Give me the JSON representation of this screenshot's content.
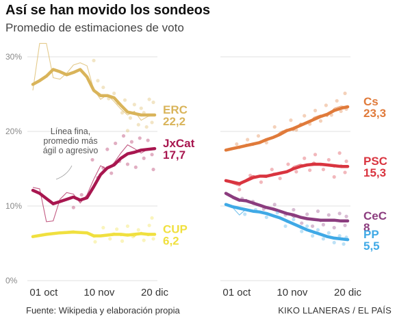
{
  "title": "Así se han movido los sondeos",
  "subtitle": "Promedio de estimaciones de voto",
  "source": "Fuente: Wikipedia y elaboración propia",
  "credit": "KIKO LLANERAS / EL PAÍS",
  "chart_data": [
    {
      "type": "line",
      "panel": "left",
      "yticks": [
        "30%",
        "20%",
        "10%",
        "0%"
      ],
      "xticks": [
        "01 oct",
        "10 nov",
        "20 dic"
      ],
      "ylim": [
        0,
        32
      ],
      "grid": true,
      "annotation": [
        "Línea fina,",
        "promedio más",
        "ágil o agresivo"
      ],
      "series": [
        {
          "name": "ERC",
          "label": "22,2",
          "color": "#d9b45a",
          "x": [
            0,
            5,
            10,
            15,
            20,
            25,
            30,
            35,
            40,
            45,
            50,
            55,
            60,
            65,
            70,
            75,
            80,
            85,
            90
          ],
          "values": [
            26.3,
            26.8,
            27.4,
            28.3,
            28.0,
            27.6,
            27.9,
            28.3,
            27.3,
            25.5,
            24.8,
            24.8,
            24.5,
            23.5,
            22.6,
            22.4,
            22.2,
            22.2,
            22.2
          ],
          "fast": [
            25.5,
            31.8,
            31.8,
            27.2,
            27.0,
            27.8,
            28.9,
            29.2,
            28.8,
            25.6,
            24.3,
            24.9,
            24.0,
            23.0,
            22.2,
            22.7,
            21.5,
            22.0,
            22.2
          ],
          "polls": [
            [
              45,
              29.5
            ],
            [
              48,
              26.8
            ],
            [
              52,
              25.9
            ],
            [
              56,
              24.4
            ],
            [
              60,
              25.1
            ],
            [
              63,
              23.8
            ],
            [
              66,
              22.5
            ],
            [
              68,
              24.2
            ],
            [
              72,
              21.8
            ],
            [
              75,
              23.6
            ],
            [
              78,
              20.9
            ],
            [
              82,
              22.5
            ],
            [
              84,
              20.6
            ],
            [
              86,
              24.3
            ],
            [
              88,
              21.2
            ],
            [
              89,
              23.9
            ],
            [
              70,
              20.1
            ],
            [
              80,
              23.1
            ]
          ]
        },
        {
          "name": "JxCat",
          "label": "17,7",
          "color": "#a8164f",
          "x": [
            0,
            5,
            10,
            15,
            20,
            25,
            30,
            35,
            40,
            45,
            50,
            55,
            60,
            65,
            70,
            75,
            80,
            85,
            90
          ],
          "values": [
            12.1,
            11.7,
            11.0,
            10.3,
            10.6,
            10.9,
            11.2,
            10.8,
            11.1,
            12.6,
            14.2,
            15.1,
            15.5,
            16.4,
            17.0,
            17.2,
            17.5,
            17.6,
            17.7
          ],
          "fast": [
            12.5,
            12.3,
            7.9,
            8.0,
            10.9,
            11.8,
            11.6,
            10.4,
            11.5,
            13.6,
            15.4,
            14.9,
            15.8,
            17.1,
            18.2,
            17.7,
            17.1,
            17.6,
            17.7
          ],
          "polls": [
            [
              44,
              16.2
            ],
            [
              48,
              13.8
            ],
            [
              52,
              15.1
            ],
            [
              55,
              17.6
            ],
            [
              58,
              14.4
            ],
            [
              61,
              18.4
            ],
            [
              64,
              16.0
            ],
            [
              67,
              19.4
            ],
            [
              70,
              15.6
            ],
            [
              73,
              18.6
            ],
            [
              76,
              15.2
            ],
            [
              79,
              19.1
            ],
            [
              82,
              16.4
            ],
            [
              85,
              18.8
            ],
            [
              88,
              16.9
            ],
            [
              89,
              14.9
            ],
            [
              30,
              9.8
            ],
            [
              36,
              11.5
            ]
          ]
        },
        {
          "name": "CUP",
          "label": "6,2",
          "color": "#f0e03f",
          "x": [
            0,
            10,
            20,
            30,
            40,
            45,
            50,
            55,
            60,
            65,
            70,
            75,
            80,
            85,
            90
          ],
          "values": [
            5.9,
            6.2,
            6.4,
            6.5,
            6.4,
            6.0,
            6.0,
            6.1,
            6.2,
            6.2,
            6.1,
            6.2,
            6.3,
            6.2,
            6.2
          ],
          "fast": [
            5.8,
            6.1,
            6.5,
            6.7,
            6.3,
            5.8,
            6.0,
            6.2,
            6.4,
            6.0,
            6.3,
            5.9,
            6.5,
            6.0,
            6.2
          ],
          "polls": [
            [
              46,
              5.2
            ],
            [
              52,
              7.1
            ],
            [
              57,
              5.6
            ],
            [
              62,
              6.9
            ],
            [
              66,
              5.3
            ],
            [
              70,
              7.3
            ],
            [
              74,
              5.9
            ],
            [
              78,
              6.8
            ],
            [
              82,
              5.4
            ],
            [
              86,
              7.4
            ],
            [
              88,
              8.4
            ],
            [
              89,
              5.6
            ]
          ]
        }
      ]
    },
    {
      "type": "line",
      "panel": "right",
      "xticks": [
        "01 oct",
        "10 nov",
        "20 dic"
      ],
      "ylim": [
        0,
        32
      ],
      "grid": true,
      "series": [
        {
          "name": "Cs",
          "label": "23,3",
          "color": "#e07a3a",
          "x": [
            0,
            5,
            10,
            15,
            20,
            25,
            30,
            35,
            40,
            45,
            50,
            55,
            60,
            65,
            70,
            75,
            80,
            85,
            90
          ],
          "values": [
            17.5,
            17.7,
            17.9,
            18.1,
            18.3,
            18.5,
            18.9,
            19.2,
            19.6,
            20.1,
            20.4,
            20.8,
            21.2,
            21.6,
            22.0,
            22.3,
            22.8,
            23.1,
            23.3
          ],
          "fast": [
            17.4,
            17.8,
            17.7,
            18.3,
            18.1,
            18.7,
            19.0,
            19.1,
            19.9,
            20.3,
            20.1,
            21.1,
            21.0,
            21.9,
            22.2,
            22.0,
            23.1,
            23.4,
            23.3
          ],
          "polls": [
            [
              8,
              18.3
            ],
            [
              16,
              18.9
            ],
            [
              24,
              19.4
            ],
            [
              30,
              18.5
            ],
            [
              36,
              20.6
            ],
            [
              42,
              19.9
            ],
            [
              48,
              21.5
            ],
            [
              52,
              20.2
            ],
            [
              58,
              22.1
            ],
            [
              62,
              21.0
            ],
            [
              66,
              22.8
            ],
            [
              70,
              21.4
            ],
            [
              74,
              23.5
            ],
            [
              78,
              22.2
            ],
            [
              82,
              24.1
            ],
            [
              85,
              22.7
            ],
            [
              88,
              25.1
            ],
            [
              89,
              23.0
            ]
          ]
        },
        {
          "name": "PSC",
          "label": "15,3",
          "color": "#d9343f",
          "x": [
            0,
            5,
            10,
            15,
            20,
            25,
            30,
            35,
            40,
            45,
            50,
            55,
            60,
            65,
            70,
            75,
            80,
            85,
            90
          ],
          "values": [
            13.4,
            13.2,
            13.0,
            13.4,
            13.8,
            14.0,
            14.0,
            14.2,
            14.4,
            14.6,
            15.0,
            15.3,
            15.5,
            15.6,
            15.6,
            15.5,
            15.4,
            15.3,
            15.3
          ],
          "fast": [
            13.3,
            13.0,
            12.7,
            13.6,
            14.1,
            13.9,
            13.8,
            14.4,
            14.5,
            14.5,
            15.3,
            15.6,
            15.4,
            15.9,
            15.4,
            15.6,
            15.2,
            15.5,
            15.3
          ],
          "polls": [
            [
              10,
              12.2
            ],
            [
              18,
              14.1
            ],
            [
              26,
              13.2
            ],
            [
              34,
              14.9
            ],
            [
              40,
              13.7
            ],
            [
              46,
              15.6
            ],
            [
              52,
              14.6
            ],
            [
              58,
              16.4
            ],
            [
              62,
              14.8
            ],
            [
              66,
              16.9
            ],
            [
              72,
              14.9
            ],
            [
              76,
              16.2
            ],
            [
              80,
              13.9
            ],
            [
              84,
              17.1
            ],
            [
              88,
              14.5
            ],
            [
              89,
              16.0
            ]
          ]
        },
        {
          "name": "CeC",
          "label": "8",
          "color": "#8b3c7e",
          "x": [
            0,
            5,
            10,
            15,
            20,
            25,
            30,
            35,
            40,
            45,
            50,
            55,
            60,
            65,
            70,
            75,
            80,
            85,
            90
          ],
          "values": [
            11.7,
            11.2,
            10.8,
            10.7,
            10.4,
            10.1,
            9.8,
            9.6,
            9.3,
            9.0,
            8.8,
            8.5,
            8.3,
            8.2,
            8.1,
            8.1,
            8.1,
            8.0,
            8.0
          ],
          "fast": [
            11.8,
            11.0,
            10.6,
            10.9,
            10.2,
            10.0,
            9.9,
            9.4,
            9.2,
            9.1,
            8.5,
            8.6,
            8.2,
            8.3,
            7.9,
            8.2,
            8.0,
            8.1,
            8.0
          ],
          "polls": [
            [
              12,
              11.0
            ],
            [
              20,
              10.6
            ],
            [
              28,
              9.6
            ],
            [
              36,
              10.2
            ],
            [
              44,
              8.8
            ],
            [
              50,
              9.5
            ],
            [
              56,
              7.7
            ],
            [
              60,
              8.9
            ],
            [
              64,
              7.3
            ],
            [
              68,
              9.3
            ],
            [
              72,
              7.5
            ],
            [
              76,
              8.8
            ],
            [
              80,
              7.1
            ],
            [
              84,
              9.0
            ],
            [
              88,
              7.4
            ],
            [
              89,
              8.6
            ]
          ]
        },
        {
          "name": "PP",
          "label": "5,5",
          "color": "#3fa9e6",
          "x": [
            0,
            5,
            10,
            15,
            20,
            25,
            30,
            35,
            40,
            45,
            50,
            55,
            60,
            65,
            70,
            75,
            80,
            85,
            90
          ],
          "values": [
            10.2,
            9.9,
            9.7,
            9.5,
            9.3,
            9.2,
            9.0,
            8.7,
            8.4,
            8.0,
            7.6,
            7.2,
            6.8,
            6.5,
            6.2,
            5.9,
            5.7,
            5.6,
            5.5
          ],
          "fast": [
            10.1,
            9.8,
            8.8,
            9.6,
            9.2,
            9.3,
            8.9,
            8.6,
            8.5,
            7.8,
            7.7,
            7.0,
            6.9,
            6.3,
            6.3,
            5.8,
            5.8,
            5.5,
            5.5
          ],
          "polls": [
            [
              14,
              8.9
            ],
            [
              22,
              9.5
            ],
            [
              30,
              8.5
            ],
            [
              38,
              9.1
            ],
            [
              44,
              7.3
            ],
            [
              50,
              8.2
            ],
            [
              56,
              6.6
            ],
            [
              60,
              7.3
            ],
            [
              64,
              6.0
            ],
            [
              68,
              6.8
            ],
            [
              72,
              5.6
            ],
            [
              76,
              6.4
            ],
            [
              80,
              5.1
            ],
            [
              84,
              6.0
            ],
            [
              87,
              4.9
            ],
            [
              89,
              5.8
            ]
          ]
        }
      ]
    }
  ]
}
